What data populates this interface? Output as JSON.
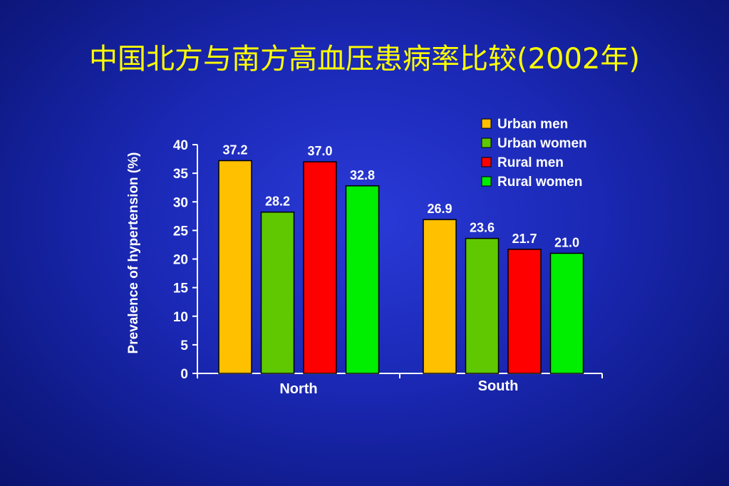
{
  "title": "中国北方与南方高血压患病率比较(2002年)",
  "chart_data": {
    "type": "bar",
    "title": "中国北方与南方高血压患病率比较(2002年)",
    "ylabel": "Prevalence of hypertension (%)",
    "xlabel": "",
    "ylim": [
      0,
      40
    ],
    "yticks": [
      0,
      5,
      10,
      15,
      20,
      25,
      30,
      35,
      40
    ],
    "categories": [
      "North",
      "South"
    ],
    "series": [
      {
        "name": "Urban men",
        "color": "#ffc000",
        "values": [
          37.2,
          26.9
        ],
        "labels": [
          "37.2",
          "26.9"
        ]
      },
      {
        "name": "Urban women",
        "color": "#5fc800",
        "values": [
          28.2,
          23.6
        ],
        "labels": [
          "28.2",
          "23.6"
        ]
      },
      {
        "name": "Rural men",
        "color": "#ff0000",
        "values": [
          37.0,
          21.7
        ],
        "labels": [
          "37.0",
          "21.7"
        ]
      },
      {
        "name": "Rural women",
        "color": "#00ee00",
        "values": [
          32.8,
          21.0
        ],
        "labels": [
          "32.8",
          "21.0"
        ]
      }
    ],
    "legend_position": "top-right",
    "grid": false
  }
}
